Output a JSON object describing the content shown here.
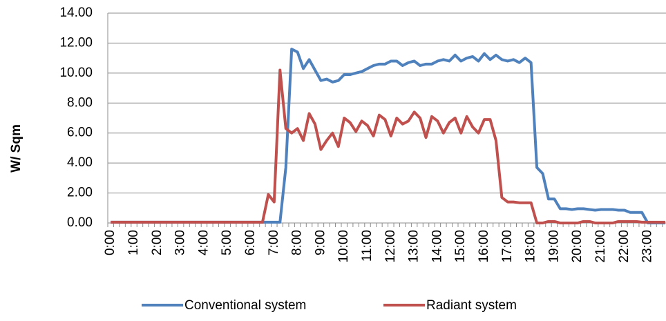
{
  "chart_data": {
    "type": "line",
    "y_label": "W/ Sqm",
    "categories": [
      "0:00",
      null,
      null,
      null,
      "1:00",
      null,
      null,
      null,
      "2:00",
      null,
      null,
      null,
      "3:00",
      null,
      null,
      null,
      "4:00",
      null,
      null,
      null,
      "5:00",
      null,
      null,
      null,
      "6:00",
      null,
      null,
      null,
      "7:00",
      null,
      null,
      null,
      "8:00",
      null,
      null,
      null,
      "9:00",
      null,
      null,
      null,
      "10:00",
      null,
      null,
      null,
      "11:00",
      null,
      null,
      null,
      "12:00",
      null,
      null,
      null,
      "13:00",
      null,
      null,
      null,
      "14:00",
      null,
      null,
      null,
      "15:00",
      null,
      null,
      null,
      "16:00",
      null,
      null,
      null,
      "17:00",
      null,
      null,
      null,
      "18:00",
      null,
      null,
      null,
      "19:00",
      null,
      null,
      null,
      "20:00",
      null,
      null,
      null,
      "21:00",
      null,
      null,
      null,
      "22:00",
      null,
      null,
      null,
      "23:00",
      null,
      null,
      null
    ],
    "series": [
      {
        "name": "Conventional system",
        "color": "#4f81bd",
        "values": [
          0.05,
          0.05,
          0.05,
          0.05,
          0.05,
          0.05,
          0.05,
          0.05,
          0.05,
          0.05,
          0.05,
          0.05,
          0.05,
          0.05,
          0.05,
          0.05,
          0.05,
          0.05,
          0.05,
          0.05,
          0.05,
          0.05,
          0.05,
          0.05,
          0.05,
          0.05,
          0.05,
          0.05,
          0.05,
          0.05,
          3.7,
          11.6,
          11.4,
          10.3,
          10.9,
          10.2,
          9.5,
          9.6,
          9.4,
          9.5,
          9.9,
          9.9,
          10.0,
          10.1,
          10.3,
          10.5,
          10.6,
          10.6,
          10.8,
          10.8,
          10.5,
          10.7,
          10.8,
          10.5,
          10.6,
          10.6,
          10.8,
          10.9,
          10.8,
          11.2,
          10.8,
          11.0,
          11.1,
          10.8,
          11.3,
          10.9,
          11.2,
          10.9,
          10.8,
          10.9,
          10.7,
          11.0,
          10.7,
          3.7,
          3.3,
          1.6,
          1.6,
          0.95,
          0.95,
          0.9,
          0.95,
          0.95,
          0.9,
          0.85,
          0.9,
          0.9,
          0.9,
          0.85,
          0.85,
          0.7,
          0.7,
          0.7,
          0,
          0,
          0,
          0
        ]
      },
      {
        "name": "Radiant system",
        "color": "#c0504d",
        "values": [
          0.05,
          0.05,
          0.05,
          0.05,
          0.05,
          0.05,
          0.05,
          0.05,
          0.05,
          0.05,
          0.05,
          0.05,
          0.05,
          0.05,
          0.05,
          0.05,
          0.05,
          0.05,
          0.05,
          0.05,
          0.05,
          0.05,
          0.05,
          0.05,
          0.05,
          0.05,
          0.05,
          1.9,
          1.4,
          10.2,
          6.3,
          6.0,
          6.3,
          5.5,
          7.3,
          6.6,
          4.9,
          5.5,
          6.0,
          5.1,
          7.0,
          6.7,
          6.1,
          6.8,
          6.5,
          5.8,
          7.2,
          6.9,
          5.8,
          7.0,
          6.6,
          6.8,
          7.4,
          7.0,
          5.7,
          7.1,
          6.8,
          6.0,
          6.7,
          7.0,
          6.0,
          7.1,
          6.4,
          6.0,
          6.9,
          6.9,
          5.5,
          1.7,
          1.4,
          1.4,
          1.35,
          1.35,
          1.35,
          0,
          0,
          0.1,
          0.1,
          0,
          0,
          0,
          0,
          0.1,
          0.1,
          0,
          0,
          0,
          0,
          0.1,
          0.1,
          0.1,
          0.1,
          0.05,
          0.05,
          0.05,
          0.05,
          0.05
        ]
      }
    ],
    "ylim": [
      0,
      14
    ],
    "yticks": [
      {
        "value": 0,
        "label": "0.00"
      },
      {
        "value": 2,
        "label": "2.00"
      },
      {
        "value": 4,
        "label": "4.00"
      },
      {
        "value": 6,
        "label": "6.00"
      },
      {
        "value": 8,
        "label": "8.00"
      },
      {
        "value": 10,
        "label": "10.00"
      },
      {
        "value": 12,
        "label": "12.00"
      },
      {
        "value": 14,
        "label": "14.00"
      }
    ],
    "grid": true,
    "legend": "bottom"
  }
}
